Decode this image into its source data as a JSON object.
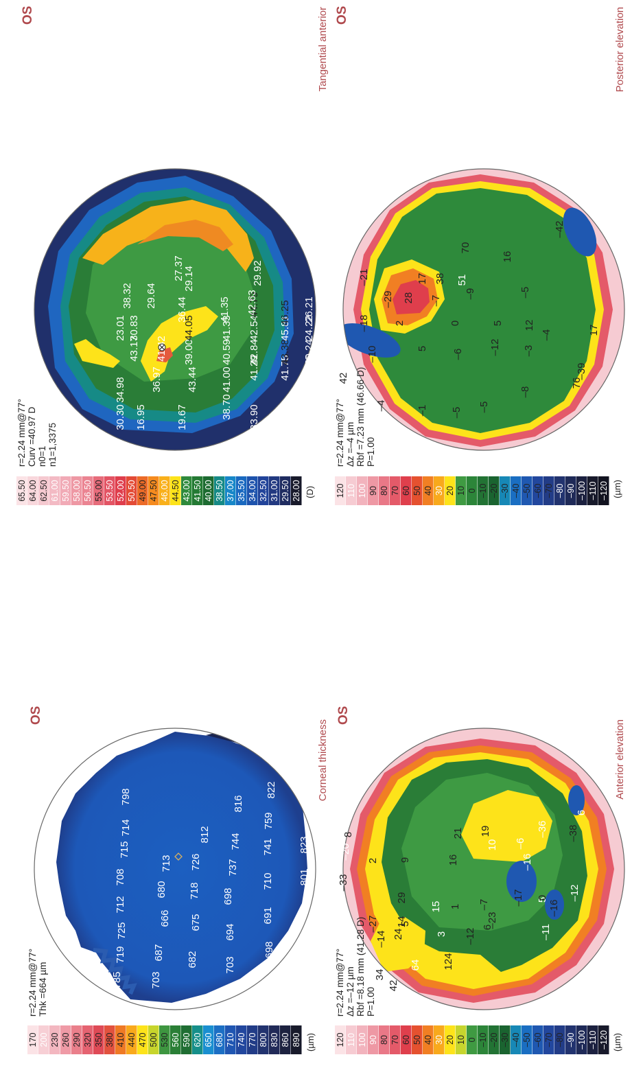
{
  "panels": [
    {
      "id": "corneal-thickness",
      "eye": "OS",
      "caption": "Corneal thickness",
      "unit": "(µm)",
      "info": [
        "r=2.24 mm@77°",
        "Thk =664 µm"
      ],
      "scale": [
        {
          "v": "170",
          "c": "#fbe3e6",
          "t": "#222"
        },
        {
          "v": "200",
          "c": "#f7cfd5",
          "t": "#fff"
        },
        {
          "v": "230",
          "c": "#f3b7c0",
          "t": "#222"
        },
        {
          "v": "260",
          "c": "#ef9aa6",
          "t": "#222"
        },
        {
          "v": "290",
          "c": "#ea7f8b",
          "t": "#222"
        },
        {
          "v": "320",
          "c": "#e56371",
          "t": "#222"
        },
        {
          "v": "350",
          "c": "#df4a56",
          "t": "#222"
        },
        {
          "v": "380",
          "c": "#e2523e",
          "t": "#222"
        },
        {
          "v": "410",
          "c": "#ef7a25",
          "t": "#222"
        },
        {
          "v": "440",
          "c": "#f9a91c",
          "t": "#222"
        },
        {
          "v": "470",
          "c": "#fde31a",
          "t": "#222"
        },
        {
          "v": "500",
          "c": "#c7d52c",
          "t": "#222"
        },
        {
          "v": "530",
          "c": "#3e9640",
          "t": "#222"
        },
        {
          "v": "560",
          "c": "#2a7f36",
          "t": "#fff"
        },
        {
          "v": "590",
          "c": "#1f6e33",
          "t": "#fff"
        },
        {
          "v": "620",
          "c": "#168f8a",
          "t": "#fff"
        },
        {
          "v": "650",
          "c": "#1a8fd0",
          "t": "#fff"
        },
        {
          "v": "680",
          "c": "#1c6fc4",
          "t": "#fff"
        },
        {
          "v": "710",
          "c": "#2056b2",
          "t": "#fff"
        },
        {
          "v": "740",
          "c": "#22479e",
          "t": "#fff"
        },
        {
          "v": "770",
          "c": "#223c87",
          "t": "#fff"
        },
        {
          "v": "800",
          "c": "#22336f",
          "t": "#fff"
        },
        {
          "v": "830",
          "c": "#212a58",
          "t": "#fff"
        },
        {
          "v": "860",
          "c": "#1d2240",
          "t": "#fff"
        },
        {
          "v": "890",
          "c": "#181a2b",
          "t": "#fff"
        }
      ],
      "labels": [
        {
          "t": "785",
          "c": "#fff"
        },
        {
          "t": "719",
          "c": "#fff"
        },
        {
          "t": "725",
          "c": "#fff"
        },
        {
          "t": "712",
          "c": "#fff"
        },
        {
          "t": "708",
          "c": "#fff"
        },
        {
          "t": "715",
          "c": "#fff"
        },
        {
          "t": "714",
          "c": "#fff"
        },
        {
          "t": "798",
          "c": "#fff"
        },
        {
          "t": "703",
          "c": "#fff"
        },
        {
          "t": "687",
          "c": "#fff"
        },
        {
          "t": "666",
          "c": "#fff"
        },
        {
          "t": "680",
          "c": "#fff"
        },
        {
          "t": "713",
          "c": "#fff"
        },
        {
          "t": "682",
          "c": "#fff"
        },
        {
          "t": "675",
          "c": "#fff"
        },
        {
          "t": "718",
          "c": "#fff"
        },
        {
          "t": "726",
          "c": "#fff"
        },
        {
          "t": "812",
          "c": "#fff"
        },
        {
          "t": "703",
          "c": "#fff"
        },
        {
          "t": "694",
          "c": "#fff"
        },
        {
          "t": "698",
          "c": "#fff"
        },
        {
          "t": "737",
          "c": "#fff"
        },
        {
          "t": "744",
          "c": "#fff"
        },
        {
          "t": "816",
          "c": "#fff"
        },
        {
          "t": "698",
          "c": "#fff"
        },
        {
          "t": "691",
          "c": "#fff"
        },
        {
          "t": "710",
          "c": "#fff"
        },
        {
          "t": "741",
          "c": "#fff"
        },
        {
          "t": "759",
          "c": "#fff"
        },
        {
          "t": "822",
          "c": "#fff"
        },
        {
          "t": "801",
          "c": "#fff"
        },
        {
          "t": "823",
          "c": "#fff"
        }
      ]
    },
    {
      "id": "tangential-anterior",
      "eye": "OS",
      "caption": "Tangential anterior",
      "unit": "(D)",
      "info": [
        "r=2.24 mm@77°",
        "Curv =40.97 D",
        "n0=1",
        "n1=1,3375"
      ],
      "scale": [
        {
          "v": "65.50",
          "c": "#fbe3e6",
          "t": "#222"
        },
        {
          "v": "64.00",
          "c": "#f8d7dc",
          "t": "#222"
        },
        {
          "v": "62.50",
          "c": "#f5c9d0",
          "t": "#222"
        },
        {
          "v": "61.00",
          "c": "#f3bac4",
          "t": "#fff"
        },
        {
          "v": "59.50",
          "c": "#f1aab6",
          "t": "#fff"
        },
        {
          "v": "58.00",
          "c": "#ee98a4",
          "t": "#fff"
        },
        {
          "v": "56.50",
          "c": "#eb8492",
          "t": "#fff"
        },
        {
          "v": "55.00",
          "c": "#e76c7b",
          "t": "#222"
        },
        {
          "v": "53.50",
          "c": "#e35464",
          "t": "#fff"
        },
        {
          "v": "52.00",
          "c": "#df3e4c",
          "t": "#fff"
        },
        {
          "v": "50.50",
          "c": "#e34b36",
          "t": "#fff"
        },
        {
          "v": "49.00",
          "c": "#ec6b28",
          "t": "#222"
        },
        {
          "v": "47.50",
          "c": "#f58b1f",
          "t": "#222"
        },
        {
          "v": "46.00",
          "c": "#f9b01b",
          "t": "#fff"
        },
        {
          "v": "44.50",
          "c": "#fde31a",
          "t": "#222"
        },
        {
          "v": "43.00",
          "c": "#2f8a3c",
          "t": "#fff"
        },
        {
          "v": "41.50",
          "c": "#247a34",
          "t": "#fff"
        },
        {
          "v": "40.00",
          "c": "#1d6b31",
          "t": "#fff"
        },
        {
          "v": "38.50",
          "c": "#168a86",
          "t": "#fff"
        },
        {
          "v": "37.00",
          "c": "#1787c8",
          "t": "#fff"
        },
        {
          "v": "35.50",
          "c": "#1a69c0",
          "t": "#fff"
        },
        {
          "v": "34.00",
          "c": "#1e53ad",
          "t": "#fff"
        },
        {
          "v": "32.50",
          "c": "#22449a",
          "t": "#fff"
        },
        {
          "v": "31.00",
          "c": "#223980",
          "t": "#fff"
        },
        {
          "v": "29.50",
          "c": "#1f2c60",
          "t": "#fff"
        },
        {
          "v": "28.00",
          "c": "#181a2b",
          "t": "#fff"
        }
      ],
      "labels": [
        {
          "t": "30.30",
          "c": "#fff"
        },
        {
          "t": "16.95",
          "c": "#fff"
        },
        {
          "t": "19.67",
          "c": "#fff"
        },
        {
          "t": "38.70",
          "c": "#fff"
        },
        {
          "t": "33.90",
          "c": "#fff"
        },
        {
          "t": "29.52",
          "c": "#fff"
        },
        {
          "t": "33.56",
          "c": "#fff"
        },
        {
          "t": "13.37",
          "c": "#fff"
        },
        {
          "t": "34.98",
          "c": "#fff"
        },
        {
          "t": "36.97",
          "c": "#fff"
        },
        {
          "t": "43.44",
          "c": "#fff"
        },
        {
          "t": "41.00",
          "c": "#fff"
        },
        {
          "t": "41.29",
          "c": "#fff"
        },
        {
          "t": "41.75",
          "c": "#fff"
        },
        {
          "t": "40.36",
          "c": "#fff"
        },
        {
          "t": "43.17",
          "c": "#fff"
        },
        {
          "t": "41.42",
          "c": "#fff"
        },
        {
          "t": "39.00",
          "c": "#fff"
        },
        {
          "t": "40.59",
          "c": "#fff"
        },
        {
          "t": "42.84",
          "c": "#fff"
        },
        {
          "t": "43.38",
          "c": "#222"
        },
        {
          "t": "30.24",
          "c": "#fff"
        },
        {
          "t": "23.01",
          "c": "#fff"
        },
        {
          "t": "30.83",
          "c": "#fff"
        },
        {
          "t": "44.05",
          "c": "#222"
        },
        {
          "t": "41.33",
          "c": "#fff"
        },
        {
          "t": "42.54",
          "c": "#fff"
        },
        {
          "t": "45.81",
          "c": "#fff"
        },
        {
          "t": "24.22",
          "c": "#fff"
        },
        {
          "t": "38.32",
          "c": "#fff"
        },
        {
          "t": "29.64",
          "c": "#fff"
        },
        {
          "t": "36.44",
          "c": "#fff"
        },
        {
          "t": "41.35",
          "c": "#fff"
        },
        {
          "t": "44.79",
          "c": "#222"
        },
        {
          "t": "46.25",
          "c": "#222"
        },
        {
          "t": "26.21",
          "c": "#fff"
        },
        {
          "t": "42.63",
          "c": "#fff"
        },
        {
          "t": "29.14",
          "c": "#fff"
        },
        {
          "t": "27.37",
          "c": "#fff"
        },
        {
          "t": "29.92",
          "c": "#fff"
        }
      ]
    },
    {
      "id": "anterior-elevation",
      "eye": "OS",
      "caption": "Anterior elevation",
      "unit": "(µm)",
      "info": [
        "r=2.24 mm@77°",
        "Δz =–12 µm",
        "Rbf =8.18 mm (41.28 D)",
        "P=1.00"
      ],
      "scale": [
        {
          "v": "120",
          "c": "#fbe3e6",
          "t": "#222"
        },
        {
          "v": "110",
          "c": "#f6cbd2",
          "t": "#fff"
        },
        {
          "v": "100",
          "c": "#f2b3bd",
          "t": "#fff"
        },
        {
          "v": "90",
          "c": "#ee98a4",
          "t": "#fff"
        },
        {
          "v": "80",
          "c": "#e97887",
          "t": "#222"
        },
        {
          "v": "70",
          "c": "#e45a69",
          "t": "#222"
        },
        {
          "v": "60",
          "c": "#df3f4c",
          "t": "#222"
        },
        {
          "v": "50",
          "c": "#e5512f",
          "t": "#222"
        },
        {
          "v": "40",
          "c": "#f17f23",
          "t": "#222"
        },
        {
          "v": "30",
          "c": "#f8a91c",
          "t": "#fff"
        },
        {
          "v": "20",
          "c": "#fde31a",
          "t": "#222"
        },
        {
          "v": "10",
          "c": "#c6d52e",
          "t": "#222"
        },
        {
          "v": "0",
          "c": "#3f9a42",
          "t": "#222"
        },
        {
          "v": "–10",
          "c": "#2c8539",
          "t": "#222"
        },
        {
          "v": "–20",
          "c": "#227334",
          "t": "#222"
        },
        {
          "v": "–30",
          "c": "#1a6430",
          "t": "#222"
        },
        {
          "v": "–40",
          "c": "#1788b6",
          "t": "#222"
        },
        {
          "v": "–50",
          "c": "#1a6ec2",
          "t": "#222"
        },
        {
          "v": "–60",
          "c": "#1f58b1",
          "t": "#222"
        },
        {
          "v": "–70",
          "c": "#22479e",
          "t": "#222"
        },
        {
          "v": "–80",
          "c": "#223c87",
          "t": "#222"
        },
        {
          "v": "–90",
          "c": "#22336f",
          "t": "#fff"
        },
        {
          "v": "–100",
          "c": "#1f2a58",
          "t": "#fff"
        },
        {
          "v": "–110",
          "c": "#1c2140",
          "t": "#fff"
        },
        {
          "v": "–120",
          "c": "#181a2b",
          "t": "#fff"
        }
      ],
      "labels": [
        {
          "t": "34",
          "c": "#222"
        },
        {
          "t": "64",
          "c": "#fff"
        },
        {
          "t": "124",
          "c": "#222"
        },
        {
          "t": "24",
          "c": "#222"
        },
        {
          "t": "3",
          "c": "#fff"
        },
        {
          "t": "–12",
          "c": "#222"
        },
        {
          "t": "–23",
          "c": "#222"
        },
        {
          "t": "5",
          "c": "#fff"
        },
        {
          "t": "42",
          "c": "#222"
        },
        {
          "t": "–14",
          "c": "#222"
        },
        {
          "t": "14",
          "c": "#222"
        },
        {
          "t": "29",
          "c": "#222"
        },
        {
          "t": "15",
          "c": "#fff"
        },
        {
          "t": "–7",
          "c": "#222"
        },
        {
          "t": "–17",
          "c": "#222"
        },
        {
          "t": "–16",
          "c": "#222"
        },
        {
          "t": "–11",
          "c": "#fff"
        },
        {
          "t": "–27",
          "c": "#222"
        },
        {
          "t": "5",
          "c": "#222"
        },
        {
          "t": "1",
          "c": "#222"
        },
        {
          "t": "6",
          "c": "#222"
        },
        {
          "t": "0",
          "c": "#222"
        },
        {
          "t": "–12",
          "c": "#fff"
        },
        {
          "t": "–33",
          "c": "#222"
        },
        {
          "t": "2",
          "c": "#222"
        },
        {
          "t": "9",
          "c": "#222"
        },
        {
          "t": "16",
          "c": "#222"
        },
        {
          "t": "10",
          "c": "#fff"
        },
        {
          "t": "–38",
          "c": "#222"
        },
        {
          "t": "–16",
          "c": "#fff"
        },
        {
          "t": "–20",
          "c": "#fff"
        },
        {
          "t": "8",
          "c": "#222"
        },
        {
          "t": "21",
          "c": "#222"
        },
        {
          "t": "19",
          "c": "#222"
        },
        {
          "t": "–6",
          "c": "#fff"
        },
        {
          "t": "–36",
          "c": "#fff"
        },
        {
          "t": "6",
          "c": "#fff"
        }
      ]
    },
    {
      "id": "posterior-elevation",
      "eye": "OS",
      "caption": "Posterior elevation",
      "unit": "(µm)",
      "info": [
        "r=2.24 mm@77°",
        "Δz =–4 µm",
        "Rbf =7.23 mm (46.66 D)",
        "P=1.00"
      ],
      "scale": [
        {
          "v": "120",
          "c": "#fbe3e6",
          "t": "#222"
        },
        {
          "v": "110",
          "c": "#f6cbd2",
          "t": "#fff"
        },
        {
          "v": "100",
          "c": "#f2b3bd",
          "t": "#fff"
        },
        {
          "v": "90",
          "c": "#ee98a4",
          "t": "#222"
        },
        {
          "v": "80",
          "c": "#e97887",
          "t": "#222"
        },
        {
          "v": "70",
          "c": "#e45a69",
          "t": "#222"
        },
        {
          "v": "60",
          "c": "#df3f4c",
          "t": "#222"
        },
        {
          "v": "50",
          "c": "#e5512f",
          "t": "#222"
        },
        {
          "v": "40",
          "c": "#f17f23",
          "t": "#222"
        },
        {
          "v": "30",
          "c": "#f8a91c",
          "t": "#fff"
        },
        {
          "v": "20",
          "c": "#fde31a",
          "t": "#222"
        },
        {
          "v": "10",
          "c": "#3f9a42",
          "t": "#222"
        },
        {
          "v": "0",
          "c": "#2c8539",
          "t": "#222"
        },
        {
          "v": "–10",
          "c": "#227334",
          "t": "#222"
        },
        {
          "v": "–20",
          "c": "#1a6430",
          "t": "#222"
        },
        {
          "v": "–30",
          "c": "#1788b6",
          "t": "#222"
        },
        {
          "v": "–40",
          "c": "#1a6ec2",
          "t": "#222"
        },
        {
          "v": "–50",
          "c": "#1f58b1",
          "t": "#222"
        },
        {
          "v": "–60",
          "c": "#22479e",
          "t": "#222"
        },
        {
          "v": "–70",
          "c": "#223c87",
          "t": "#222"
        },
        {
          "v": "–80",
          "c": "#22336f",
          "t": "#fff"
        },
        {
          "v": "–90",
          "c": "#1f2a58",
          "t": "#fff"
        },
        {
          "v": "–100",
          "c": "#1c2140",
          "t": "#fff"
        },
        {
          "v": "–110",
          "c": "#181a2b",
          "t": "#fff"
        },
        {
          "v": "–120",
          "c": "#121320",
          "t": "#fff"
        }
      ],
      "labels": [
        {
          "t": "–4",
          "c": "#222"
        },
        {
          "t": "–1",
          "c": "#222"
        },
        {
          "t": "–5",
          "c": "#222"
        },
        {
          "t": "–5",
          "c": "#222"
        },
        {
          "t": "–8",
          "c": "#222"
        },
        {
          "t": "76",
          "c": "#222"
        },
        {
          "t": "42",
          "c": "#222"
        },
        {
          "t": "–10",
          "c": "#222"
        },
        {
          "t": "5",
          "c": "#222"
        },
        {
          "t": "–6",
          "c": "#222"
        },
        {
          "t": "–12",
          "c": "#222"
        },
        {
          "t": "–3",
          "c": "#222"
        },
        {
          "t": "–39",
          "c": "#222"
        },
        {
          "t": "–18",
          "c": "#222"
        },
        {
          "t": "2",
          "c": "#222"
        },
        {
          "t": "0",
          "c": "#222"
        },
        {
          "t": "5",
          "c": "#222"
        },
        {
          "t": "12",
          "c": "#222"
        },
        {
          "t": "–4",
          "c": "#222"
        },
        {
          "t": "17",
          "c": "#222"
        },
        {
          "t": "–29",
          "c": "#222"
        },
        {
          "t": "–7",
          "c": "#222"
        },
        {
          "t": "28",
          "c": "#222"
        },
        {
          "t": "–9",
          "c": "#222"
        },
        {
          "t": "–5",
          "c": "#222"
        },
        {
          "t": "–21",
          "c": "#222"
        },
        {
          "t": "17",
          "c": "#222"
        },
        {
          "t": "51",
          "c": "#fff"
        },
        {
          "t": "38",
          "c": "#222"
        },
        {
          "t": "–42",
          "c": "#222"
        },
        {
          "t": "70",
          "c": "#222"
        },
        {
          "t": "16",
          "c": "#222"
        }
      ]
    }
  ]
}
